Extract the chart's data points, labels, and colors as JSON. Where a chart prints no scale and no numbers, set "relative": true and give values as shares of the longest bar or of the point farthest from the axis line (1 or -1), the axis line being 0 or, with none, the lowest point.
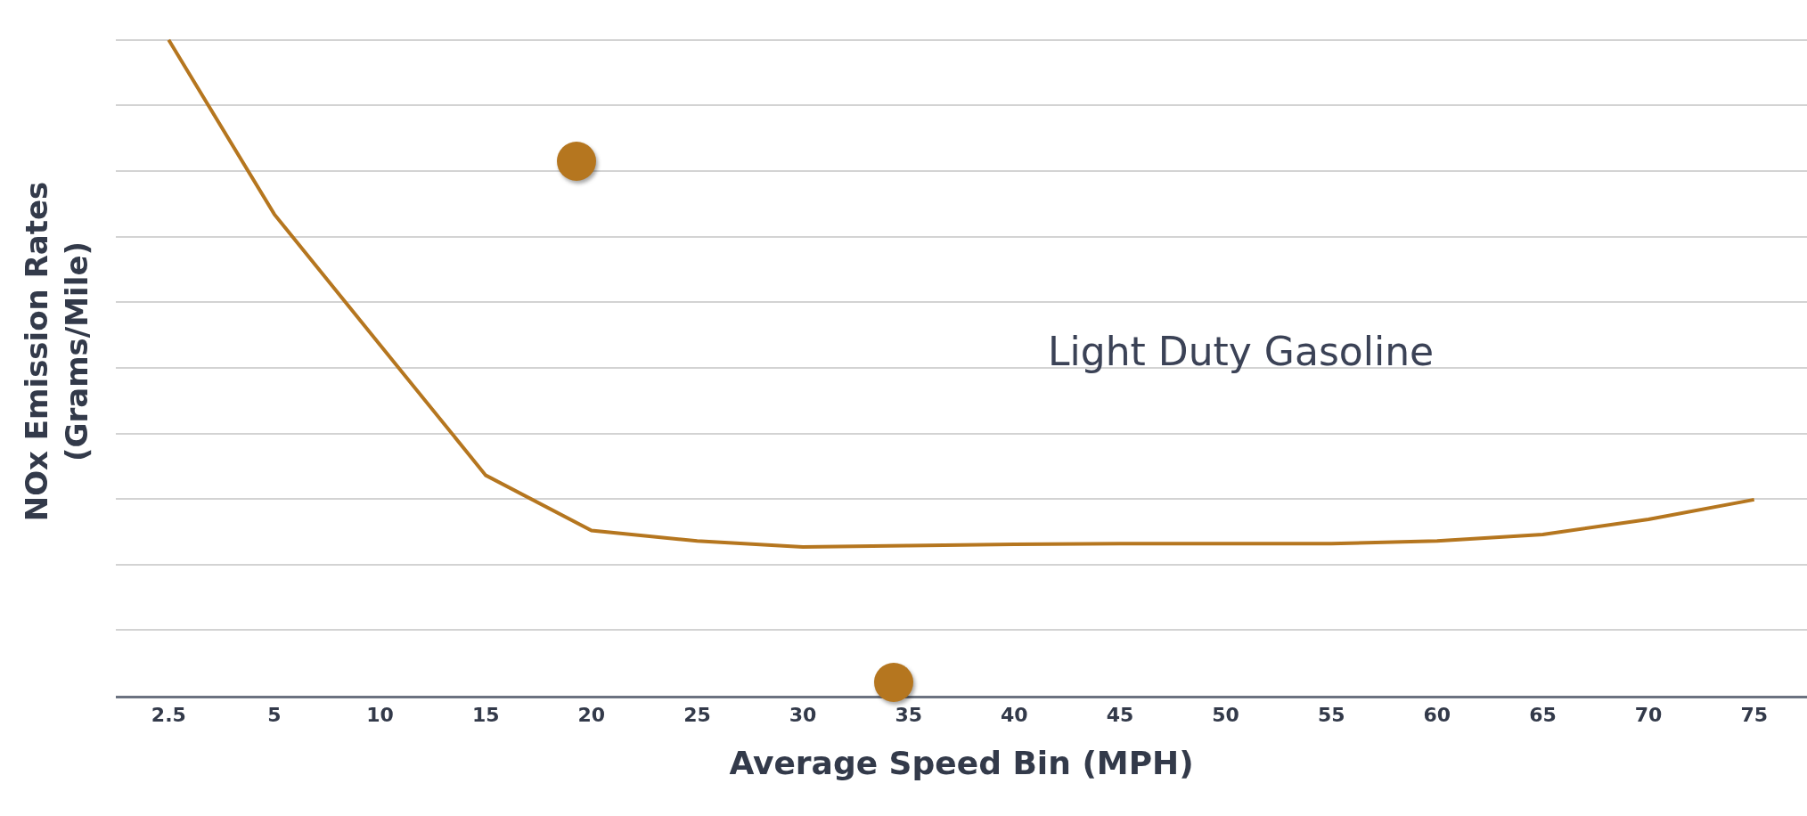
{
  "chart_data": {
    "type": "line",
    "relative": true,
    "xlabel": "Average Speed Bin (MPH)",
    "ylabel": "NOx Emission Rates\n(Grams/Mile)",
    "annotations": [
      "Light Duty Gasoline"
    ],
    "categories": [
      "2.5",
      "5",
      "10",
      "15",
      "20",
      "25",
      "30",
      "35",
      "40",
      "45",
      "50",
      "55",
      "60",
      "65",
      "70",
      "75"
    ],
    "series": [
      {
        "color": "#b5761f",
        "values": [
          1,
          0.734,
          0.535,
          0.336,
          0.252,
          0.236,
          0.227,
          0.229,
          0.231,
          0.232,
          0.232,
          0.232,
          0.236,
          0.246,
          0.269,
          0.299
        ]
      }
    ],
    "grid": "y",
    "marker": "none",
    "line_style": "solid"
  }
}
